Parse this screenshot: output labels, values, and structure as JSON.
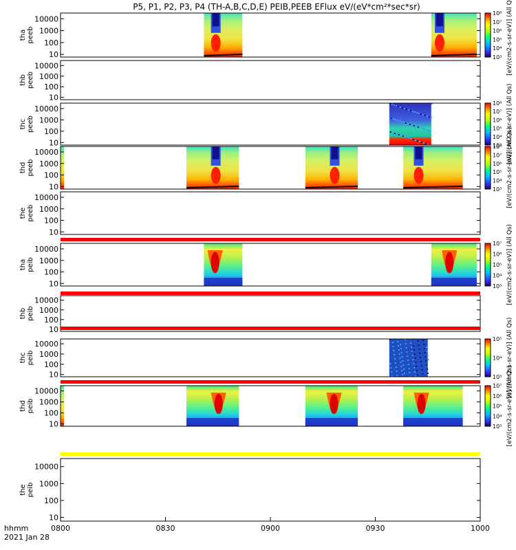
{
  "title": "P5, P1, P2, P3, P4 (TH-A,B,C,D,E) PEIB,PEEB EFlux eV/(eV*cm²*sec*sr)",
  "colors": {
    "red": "#ff0000",
    "yellow": "#ffff00",
    "black": "#000000"
  },
  "chart_data": {
    "type": "heatmap",
    "x_label": "hhmm",
    "date_label": "2021 Jan 28",
    "x_ticks": [
      "0800",
      "0830",
      "0900",
      "0930",
      "1000"
    ],
    "x_range": [
      "08:00",
      "10:00"
    ],
    "y_scale": "log",
    "y_ticks": [
      "10",
      "100",
      "1000",
      "10000"
    ],
    "colorbar_label": "[eV/(cm2-s-sr-eV)] (All Qs)",
    "panels": [
      {
        "label": "tha peeb",
        "colorbar_ticks": [
          "10³",
          "10⁴",
          "10⁵",
          "10⁶",
          "10⁷",
          "10⁸"
        ],
        "blocks": [
          {
            "start": "08:41",
            "end": "08:52",
            "profile": "electron_dip",
            "dip": "08:44"
          },
          {
            "start": "09:46",
            "end": "09:59",
            "profile": "electron_dip",
            "dip": "09:48"
          }
        ]
      },
      {
        "label": "thb peeb",
        "colorbar_ticks": [],
        "blocks": []
      },
      {
        "label": "thc peeb",
        "colorbar_ticks": [
          "10³",
          "10⁴",
          "10⁵",
          "10⁶",
          "10⁷",
          "10⁸"
        ],
        "blocks": [
          {
            "start": "09:34",
            "end": "09:46",
            "profile": "speckled"
          }
        ]
      },
      {
        "label": "thd peeb",
        "colorbar_ticks": [
          "10³",
          "10⁴",
          "10⁵",
          "10⁶",
          "10⁷",
          "10⁸"
        ],
        "blocks": [
          {
            "start": "08:00",
            "end": "08:01",
            "profile": "edge"
          },
          {
            "start": "08:36",
            "end": "08:51",
            "profile": "electron_dip",
            "dip": "08:44"
          },
          {
            "start": "09:10",
            "end": "09:25",
            "profile": "electron_dip",
            "dip": "09:18"
          },
          {
            "start": "09:38",
            "end": "09:55",
            "profile": "electron_dip",
            "dip": "09:42"
          }
        ]
      },
      {
        "label": "the peeb",
        "colorbar_ticks": [],
        "blocks": []
      },
      {
        "label": "tha peib",
        "colorbar_ticks": [
          "10³",
          "10⁴",
          "10⁵",
          "10⁶",
          "10⁷"
        ],
        "blocks": [
          {
            "start": "08:41",
            "end": "08:52",
            "profile": "ion_v",
            "dip": "08:44"
          },
          {
            "start": "09:46",
            "end": "09:59",
            "profile": "ion_v",
            "dip": "09:51"
          }
        ]
      },
      {
        "label": "thb peib",
        "colorbar_ticks": [],
        "blocks": []
      },
      {
        "label": "thc peib",
        "colorbar_ticks": [
          "10³",
          "10⁴",
          "10⁵"
        ],
        "blocks": [
          {
            "start": "09:34",
            "end": "09:45",
            "profile": "ion_speckled"
          }
        ]
      },
      {
        "label": "thd peib",
        "colorbar_ticks": [
          "10³",
          "10⁴",
          "10⁵",
          "10⁶",
          "10⁷"
        ],
        "blocks": [
          {
            "start": "08:00",
            "end": "08:01",
            "profile": "edge"
          },
          {
            "start": "08:36",
            "end": "08:51",
            "profile": "ion_v",
            "dip": "08:45"
          },
          {
            "start": "09:10",
            "end": "09:25",
            "profile": "ion_v",
            "dip": "09:18"
          },
          {
            "start": "09:38",
            "end": "09:55",
            "profile": "ion_v",
            "dip": "09:43"
          }
        ]
      },
      {
        "label": "the peib",
        "colorbar_ticks": [],
        "blocks": []
      }
    ],
    "separator_bars": [
      {
        "after_panel": 5,
        "color": "red"
      },
      {
        "after_panel": 6,
        "color": "red"
      },
      {
        "after_panel": 7,
        "color": "red"
      },
      {
        "after_panel": 8,
        "color": "red"
      },
      {
        "after_panel": 9,
        "color": "yellow"
      }
    ]
  }
}
